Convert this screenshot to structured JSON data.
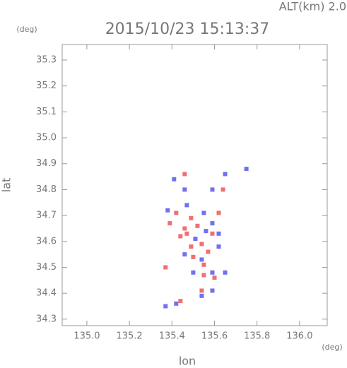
{
  "chart_data": {
    "type": "scatter",
    "header": "ALT(km) 2.0",
    "title": "2015/10/23 15:13:37",
    "y_unit": "(deg)",
    "x_unit": "(deg)",
    "ylabel": "lat",
    "xlabel": "lon",
    "xlim": [
      134.884,
      136.13
    ],
    "ylim": [
      34.275,
      35.36
    ],
    "xticks": [
      {
        "value": 135.0,
        "label": "135.0"
      },
      135.2,
      135.4,
      135.6,
      135.8,
      {
        "value": 136.0,
        "label": "136.0"
      }
    ],
    "yticks": [
      34.3,
      34.4,
      34.5,
      34.6,
      34.7,
      34.8,
      34.9,
      {
        "value": 35.0,
        "label": "35.0"
      },
      35.1,
      35.2,
      35.3
    ],
    "series": [
      {
        "color": "#f07070",
        "x": [
          135.46,
          135.52,
          135.59,
          135.49,
          135.54,
          135.44,
          135.5,
          135.55,
          135.6,
          135.59,
          135.54,
          135.44,
          135.47,
          135.62,
          135.46,
          135.64,
          135.42,
          135.37,
          135.55,
          135.39,
          135.49,
          135.57
        ],
        "y": [
          34.65,
          34.66,
          34.63,
          34.58,
          34.59,
          34.62,
          34.54,
          34.47,
          34.46,
          34.41,
          34.41,
          34.37,
          34.63,
          34.71,
          34.86,
          34.8,
          34.71,
          34.5,
          34.51,
          34.67,
          34.69,
          34.56
        ]
      },
      {
        "color": "#7070f0",
        "x": [
          135.38,
          135.59,
          135.62,
          135.51,
          135.56,
          135.5,
          135.59,
          135.65,
          135.59,
          135.46,
          135.54,
          135.37,
          135.42,
          135.65,
          135.46,
          135.59,
          135.55,
          135.47,
          135.41,
          135.75,
          135.54,
          135.62
        ],
        "y": [
          34.72,
          34.67,
          34.63,
          34.61,
          34.64,
          34.48,
          34.48,
          34.48,
          34.41,
          34.55,
          34.53,
          34.35,
          34.36,
          34.86,
          34.8,
          34.8,
          34.71,
          34.74,
          34.84,
          34.88,
          34.39,
          34.58
        ]
      }
    ]
  }
}
